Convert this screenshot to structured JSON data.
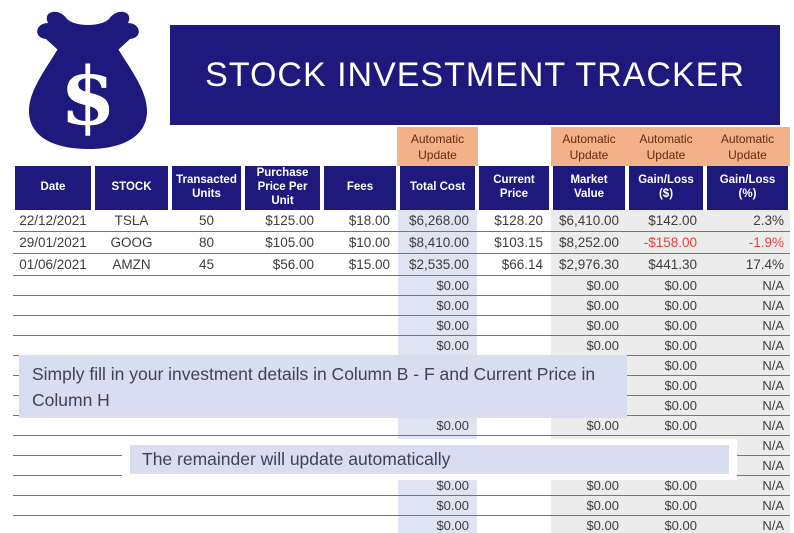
{
  "logo": {
    "icon": "money-bag-dollar-icon",
    "symbol": "$"
  },
  "banner": {
    "title": "STOCK INVESTMENT TRACKER"
  },
  "auto_update": {
    "line1": "Automatic",
    "line2": "Update",
    "applies_to": [
      "Total Cost",
      "Market Value",
      "Gain/Loss ($)",
      "Gain/Loss (%)"
    ]
  },
  "table": {
    "columns": [
      {
        "key": "date",
        "label": "Date"
      },
      {
        "key": "stock",
        "label": "STOCK"
      },
      {
        "key": "units",
        "label": "Transacted Units"
      },
      {
        "key": "purchase_price",
        "label": "Purchase Price Per Unit"
      },
      {
        "key": "fees",
        "label": "Fees"
      },
      {
        "key": "total_cost",
        "label": "Total Cost"
      },
      {
        "key": "current_price",
        "label": "Current Price"
      },
      {
        "key": "market_value",
        "label": "Market Value"
      },
      {
        "key": "gain_loss_usd",
        "label": "Gain/Loss ($)"
      },
      {
        "key": "gain_loss_pct",
        "label": "Gain/Loss (%)"
      }
    ],
    "rows": [
      [
        "22/12/2021",
        "TSLA",
        "50",
        "$125.00",
        "$18.00",
        "$6,268.00",
        "$128.20",
        "$6,410.00",
        "$142.00",
        "2.3%"
      ],
      [
        "29/01/2021",
        "GOOG",
        "80",
        "$105.00",
        "$10.00",
        "$8,410.00",
        "$103.15",
        "$8,252.00",
        "-$158.00",
        "-1.9%"
      ],
      [
        "01/06/2021",
        "AMZN",
        "45",
        "$56.00",
        "$15.00",
        "$2,535.00",
        "$66.14",
        "$2,976.30",
        "$441.30",
        "17.4%"
      ],
      [
        "",
        "",
        "",
        "",
        "",
        "$0.00",
        "",
        "$0.00",
        "$0.00",
        "N/A"
      ],
      [
        "",
        "",
        "",
        "",
        "",
        "$0.00",
        "",
        "$0.00",
        "$0.00",
        "N/A"
      ],
      [
        "",
        "",
        "",
        "",
        "",
        "$0.00",
        "",
        "$0.00",
        "$0.00",
        "N/A"
      ],
      [
        "",
        "",
        "",
        "",
        "",
        "$0.00",
        "",
        "$0.00",
        "$0.00",
        "N/A"
      ],
      [
        "",
        "",
        "",
        "",
        "",
        "$0.00",
        "",
        "$0.00",
        "$0.00",
        "N/A"
      ],
      [
        "",
        "",
        "",
        "",
        "",
        "$0.00",
        "",
        "$0.00",
        "$0.00",
        "N/A"
      ],
      [
        "",
        "",
        "",
        "",
        "",
        "$0.00",
        "",
        "$0.00",
        "$0.00",
        "N/A"
      ],
      [
        "",
        "",
        "",
        "",
        "",
        "$0.00",
        "",
        "$0.00",
        "$0.00",
        "N/A"
      ],
      [
        "",
        "",
        "",
        "",
        "",
        "$0.00",
        "",
        "$0.00",
        "$0.00",
        "N/A"
      ],
      [
        "",
        "",
        "",
        "",
        "",
        "$0.00",
        "",
        "$0.00",
        "$0.00",
        "N/A"
      ],
      [
        "",
        "",
        "",
        "",
        "",
        "$0.00",
        "",
        "$0.00",
        "$0.00",
        "N/A"
      ],
      [
        "",
        "",
        "",
        "",
        "",
        "$0.00",
        "",
        "$0.00",
        "$0.00",
        "N/A"
      ],
      [
        "",
        "",
        "",
        "",
        "",
        "$0.00",
        "",
        "$0.00",
        "$0.00",
        "N/A"
      ]
    ]
  },
  "notes": {
    "note1": "Simply fill in your investment details in Column B - F and Current Price in Column H",
    "note2": "The remainder will update automatically"
  },
  "colors": {
    "navy": "#1e1a7d",
    "peach": "#f3b189",
    "peach_text": "#69290c",
    "total_cost_column": "#dfe3f2",
    "auto_columns_gray": "#edecec",
    "note_background": "#d8def0",
    "negative_value": "#e8403a"
  }
}
